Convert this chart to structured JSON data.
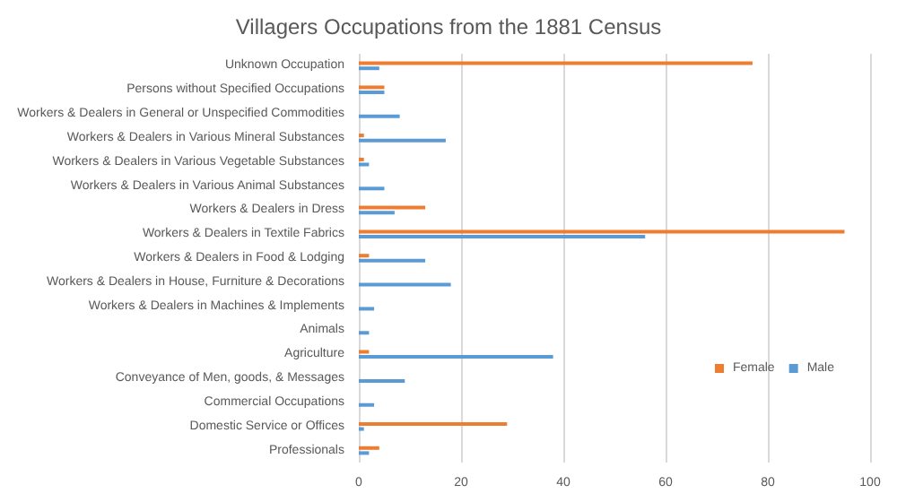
{
  "chart_data": {
    "type": "bar",
    "orientation": "horizontal",
    "title": "Villagers Occupations from the 1881 Census",
    "categories": [
      "Unknown Occupation",
      "Persons without Specified Occupations",
      "Workers & Dealers in General or Unspecified Commodities",
      "Workers & Dealers in Various Mineral Substances",
      "Workers & Dealers in Various Vegetable Substances",
      "Workers & Dealers in Various Animal Substances",
      "Workers & Dealers in Dress",
      "Workers & Dealers in Textile Fabrics",
      "Workers & Dealers in Food & Lodging",
      "Workers & Dealers in House, Furniture & Decorations",
      "Workers & Dealers in Machines & Implements",
      "Animals",
      "Agriculture",
      "Conveyance of Men, goods, & Messages",
      "Commercial Occupations",
      "Domestic Service or Offices",
      "Professionals"
    ],
    "series": [
      {
        "name": "Female",
        "color": "#ed7d31",
        "values": [
          77,
          5,
          0,
          1,
          1,
          0,
          13,
          95,
          2,
          0,
          0,
          0,
          2,
          0,
          0,
          29,
          4
        ]
      },
      {
        "name": "Male",
        "color": "#5b9bd5",
        "values": [
          4,
          5,
          8,
          17,
          2,
          5,
          7,
          56,
          13,
          18,
          3,
          2,
          38,
          9,
          3,
          1,
          2
        ]
      }
    ],
    "xlim": [
      0,
      100
    ],
    "xticks": [
      0,
      20,
      40,
      60,
      80,
      100
    ],
    "grid": "x",
    "legend": "right"
  }
}
